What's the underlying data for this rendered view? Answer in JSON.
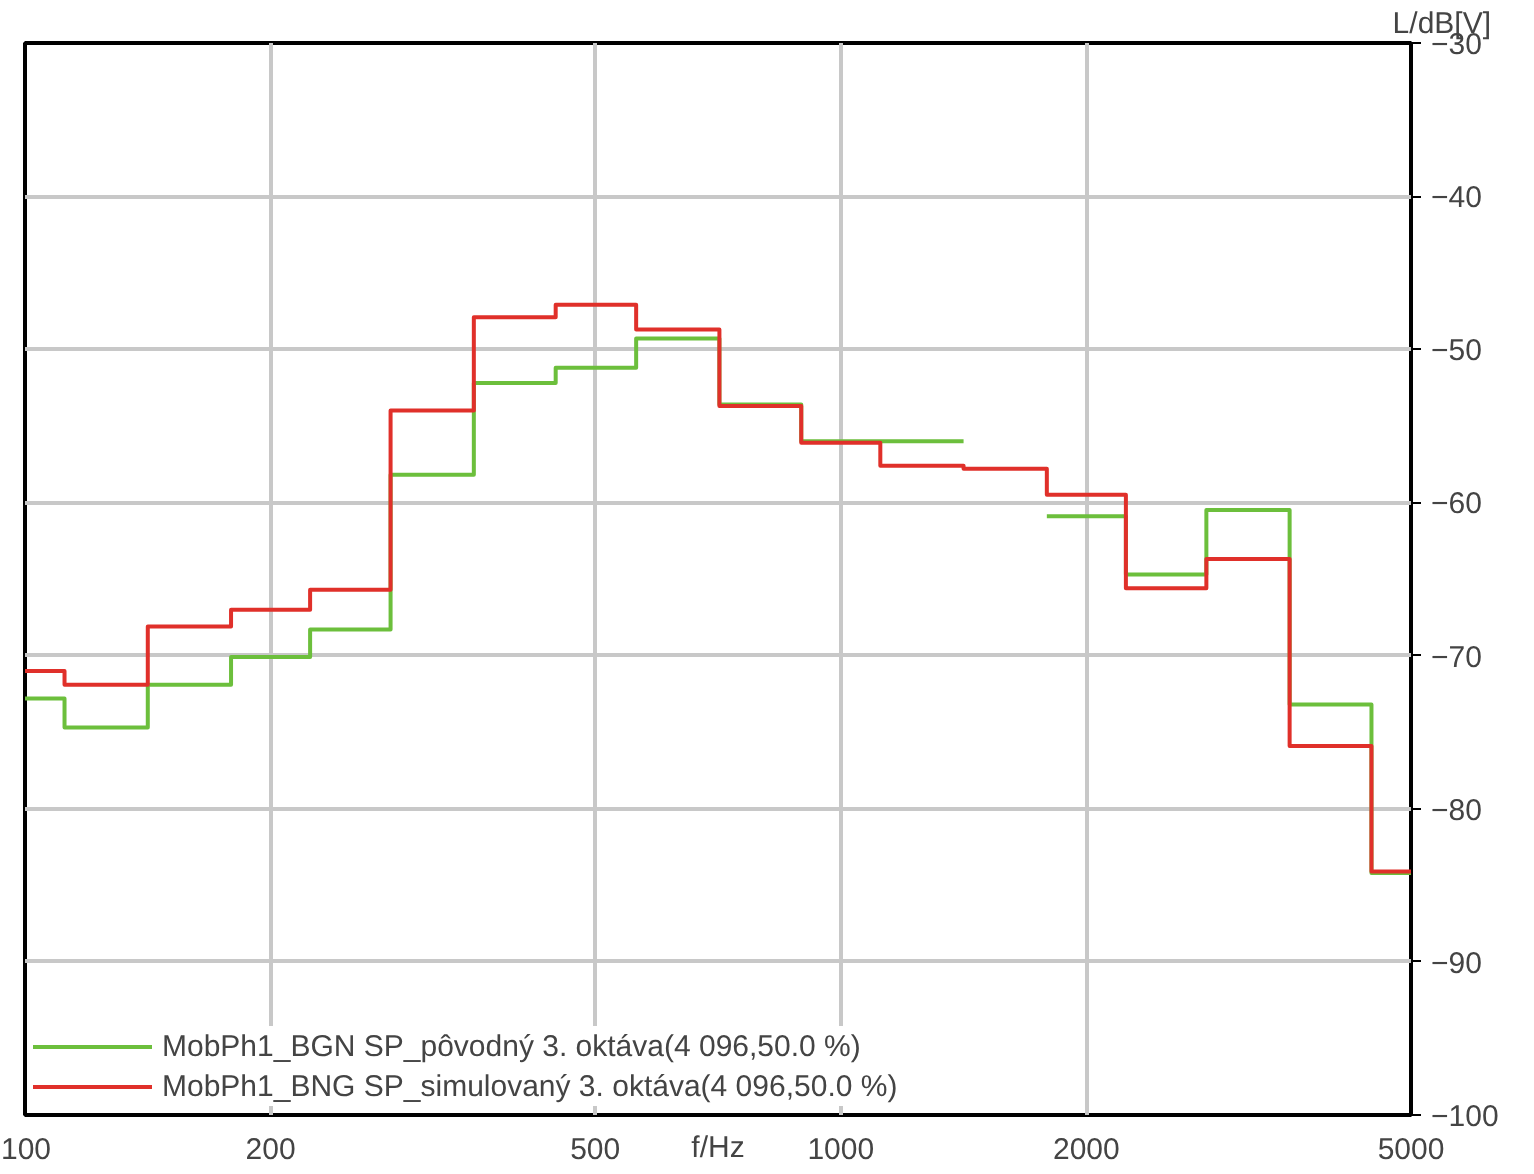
{
  "chart_data": {
    "type": "step",
    "xlabel": "f/Hz",
    "ylabel": "L/dB[V]",
    "x": [
      100,
      125,
      160,
      200,
      250,
      315,
      400,
      500,
      630,
      800,
      1000,
      1250,
      1600,
      2000,
      2500,
      3150,
      4000,
      5000
    ],
    "series": [
      {
        "name": "MobPh1_BGN SP_pôvodný 3. oktáva(4 096,50.0 %)",
        "color": "#6cbf3c",
        "values": [
          -72.8,
          -74.7,
          -71.9,
          -70.1,
          -68.3,
          -58.2,
          -52.2,
          -51.2,
          -49.3,
          -53.6,
          -56.0,
          -56.0,
          null,
          -60.9,
          -64.7,
          -60.5,
          -73.2,
          -84.2
        ]
      },
      {
        "name": "MobPh1_BNG SP_simulovaný 3. oktáva(4 096,50.0 %)",
        "color": "#e0302a",
        "values": [
          -71.0,
          -71.9,
          -68.1,
          -67.0,
          -65.7,
          -54.0,
          -47.9,
          -47.1,
          -48.7,
          -53.7,
          -56.1,
          -57.6,
          -57.8,
          -59.5,
          -65.6,
          -63.7,
          -75.9,
          -84.1
        ]
      }
    ],
    "log": "x",
    "xlim": [
      100,
      5000
    ],
    "xticks": [
      100,
      200,
      500,
      1000,
      2000,
      5000
    ],
    "ylim": [
      -100,
      -30
    ],
    "yticks": [
      -100,
      -90,
      -80,
      -70,
      -60,
      -50,
      -40,
      -30
    ],
    "grid": true,
    "legend": "bottom left"
  }
}
